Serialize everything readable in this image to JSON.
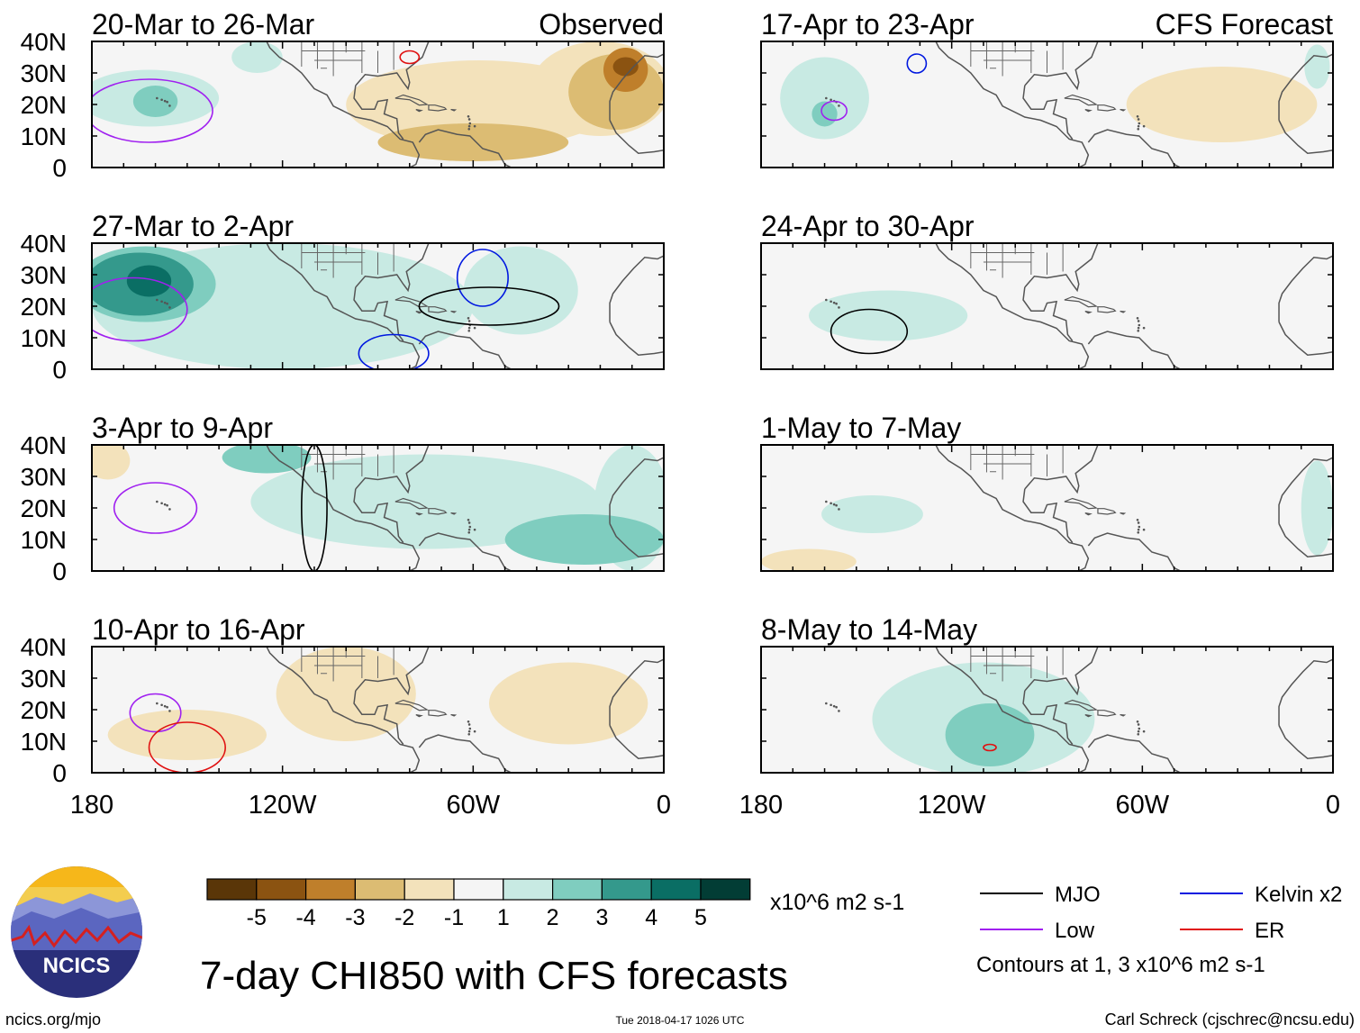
{
  "chart_data": {
    "type": "heatmap",
    "title": "7-day CHI850 with CFS forecasts",
    "units": "x10^6 m2 s-1",
    "region": {
      "lon_range": [
        -180,
        0
      ],
      "lat_range": [
        0,
        40
      ]
    },
    "x_ticks": [
      "180",
      "120W",
      "60W",
      "0"
    ],
    "y_ticks": [
      "40N",
      "30N",
      "20N",
      "10N",
      "0"
    ],
    "left_header": "Observed",
    "right_header": "CFS Forecast",
    "panels": [
      {
        "title": "20-Mar to 26-Mar",
        "source": "Observed",
        "features": [
          {
            "kind": "fill",
            "level": 1,
            "lon": -162,
            "lat": 22,
            "rlon": 22,
            "rlat": 9
          },
          {
            "kind": "fill",
            "level": 2,
            "lon": -160,
            "lat": 21,
            "rlon": 7,
            "rlat": 5
          },
          {
            "kind": "fill",
            "level": 1,
            "lon": -128,
            "lat": 35,
            "rlon": 8,
            "rlat": 5
          },
          {
            "kind": "fill",
            "level": -1,
            "lon": -58,
            "lat": 20,
            "rlon": 42,
            "rlat": 14
          },
          {
            "kind": "fill",
            "level": -1,
            "lon": -20,
            "lat": 25,
            "rlon": 22,
            "rlat": 15
          },
          {
            "kind": "fill",
            "level": -2,
            "lon": -60,
            "lat": 8,
            "rlon": 30,
            "rlat": 6
          },
          {
            "kind": "fill",
            "level": -2,
            "lon": -15,
            "lat": 24,
            "rlon": 15,
            "rlat": 12
          },
          {
            "kind": "fill",
            "level": -3,
            "lon": -12,
            "lat": 31,
            "rlon": 7,
            "rlat": 7
          },
          {
            "kind": "fill",
            "level": -4,
            "lon": -12,
            "lat": 32,
            "rlon": 4,
            "rlat": 3
          },
          {
            "kind": "contour",
            "name": "Low",
            "lon": -162,
            "lat": 18,
            "rlon": 20,
            "rlat": 10
          },
          {
            "kind": "contour",
            "name": "ER",
            "lon": -80,
            "lat": 35,
            "rlon": 3,
            "rlat": 2
          }
        ]
      },
      {
        "title": "17-Apr to 23-Apr",
        "source": "CFS Forecast",
        "features": [
          {
            "kind": "fill",
            "level": 1,
            "lon": -160,
            "lat": 22,
            "rlon": 14,
            "rlat": 13
          },
          {
            "kind": "fill",
            "level": 2,
            "lon": -160,
            "lat": 17,
            "rlon": 4,
            "rlat": 4
          },
          {
            "kind": "fill",
            "level": -1,
            "lon": -35,
            "lat": 20,
            "rlon": 30,
            "rlat": 12
          },
          {
            "kind": "fill",
            "level": 1,
            "lon": -5,
            "lat": 32,
            "rlon": 4,
            "rlat": 7
          },
          {
            "kind": "contour",
            "name": "Kelvin x2",
            "lon": -131,
            "lat": 33,
            "rlon": 3,
            "rlat": 3
          },
          {
            "kind": "contour",
            "name": "Low",
            "lon": -157,
            "lat": 18,
            "rlon": 4,
            "rlat": 3
          }
        ]
      },
      {
        "title": "27-Mar to 2-Apr",
        "source": "Observed",
        "features": [
          {
            "kind": "fill",
            "level": 1,
            "lon": -120,
            "lat": 20,
            "rlon": 60,
            "rlat": 20
          },
          {
            "kind": "fill",
            "level": 1,
            "lon": -45,
            "lat": 25,
            "rlon": 18,
            "rlat": 14
          },
          {
            "kind": "fill",
            "level": 2,
            "lon": -163,
            "lat": 27,
            "rlon": 22,
            "rlat": 12
          },
          {
            "kind": "fill",
            "level": 3,
            "lon": -165,
            "lat": 27,
            "rlon": 17,
            "rlat": 10
          },
          {
            "kind": "fill",
            "level": 4,
            "lon": -162,
            "lat": 28,
            "rlon": 7,
            "rlat": 5
          },
          {
            "kind": "contour",
            "name": "Low",
            "lon": -167,
            "lat": 19,
            "rlon": 17,
            "rlat": 10
          },
          {
            "kind": "contour",
            "name": "Kelvin x2",
            "lon": -57,
            "lat": 29,
            "rlon": 8,
            "rlat": 9
          },
          {
            "kind": "contour",
            "name": "Kelvin x2",
            "lon": -85,
            "lat": 5,
            "rlon": 11,
            "rlat": 6
          },
          {
            "kind": "contour",
            "name": "MJO",
            "lon": -55,
            "lat": 20,
            "rlon": 22,
            "rlat": 6
          }
        ]
      },
      {
        "title": "24-Apr to 30-Apr",
        "source": "CFS Forecast",
        "features": [
          {
            "kind": "fill",
            "level": 1,
            "lon": -140,
            "lat": 17,
            "rlon": 25,
            "rlat": 8
          },
          {
            "kind": "contour",
            "name": "MJO",
            "lon": -146,
            "lat": 12,
            "rlon": 12,
            "rlat": 7
          }
        ]
      },
      {
        "title": "3-Apr to 9-Apr",
        "source": "Observed",
        "features": [
          {
            "kind": "fill",
            "level": 1,
            "lon": -75,
            "lat": 22,
            "rlon": 55,
            "rlat": 15
          },
          {
            "kind": "fill",
            "level": 1,
            "lon": -10,
            "lat": 20,
            "rlon": 12,
            "rlat": 20
          },
          {
            "kind": "fill",
            "level": 2,
            "lon": -25,
            "lat": 10,
            "rlon": 25,
            "rlat": 8
          },
          {
            "kind": "fill",
            "level": 2,
            "lon": -125,
            "lat": 36,
            "rlon": 14,
            "rlat": 5
          },
          {
            "kind": "fill",
            "level": -1,
            "lon": -175,
            "lat": 35,
            "rlon": 7,
            "rlat": 6
          },
          {
            "kind": "contour",
            "name": "Low",
            "lon": -160,
            "lat": 20,
            "rlon": 13,
            "rlat": 8
          },
          {
            "kind": "contour",
            "name": "MJO",
            "lon": -110,
            "lat": 20,
            "rlon": 4,
            "rlat": 20
          }
        ]
      },
      {
        "title": "1-May to 7-May",
        "source": "CFS Forecast",
        "features": [
          {
            "kind": "fill",
            "level": 1,
            "lon": -145,
            "lat": 18,
            "rlon": 16,
            "rlat": 6
          },
          {
            "kind": "fill",
            "level": 1,
            "lon": -5,
            "lat": 20,
            "rlon": 5,
            "rlat": 15
          },
          {
            "kind": "fill",
            "level": -1,
            "lon": -165,
            "lat": 3,
            "rlon": 15,
            "rlat": 4
          }
        ]
      },
      {
        "title": "10-Apr to 16-Apr",
        "source": "Observed",
        "features": [
          {
            "kind": "fill",
            "level": -1,
            "lon": -100,
            "lat": 25,
            "rlon": 22,
            "rlat": 15
          },
          {
            "kind": "fill",
            "level": -1,
            "lon": -30,
            "lat": 22,
            "rlon": 25,
            "rlat": 13
          },
          {
            "kind": "fill",
            "level": -1,
            "lon": -150,
            "lat": 12,
            "rlon": 25,
            "rlat": 8
          },
          {
            "kind": "contour",
            "name": "Low",
            "lon": -160,
            "lat": 19,
            "rlon": 8,
            "rlat": 6
          },
          {
            "kind": "contour",
            "name": "ER",
            "lon": -150,
            "lat": 8,
            "rlon": 12,
            "rlat": 8
          }
        ]
      },
      {
        "title": "8-May to 14-May",
        "source": "CFS Forecast",
        "features": [
          {
            "kind": "fill",
            "level": 1,
            "lon": -110,
            "lat": 17,
            "rlon": 35,
            "rlat": 18
          },
          {
            "kind": "fill",
            "level": 2,
            "lon": -108,
            "lat": 12,
            "rlon": 14,
            "rlat": 10
          },
          {
            "kind": "contour",
            "name": "ER",
            "lon": -108,
            "lat": 8,
            "rlon": 2,
            "rlat": 1
          }
        ]
      }
    ],
    "colorbar": {
      "tick_labels": [
        "-5",
        "-4",
        "-3",
        "-2",
        "-1",
        "1",
        "2",
        "3",
        "4",
        "5"
      ],
      "colors": [
        "#5a3608",
        "#8b5311",
        "#bf7f2b",
        "#dcbc73",
        "#f3e2bb",
        "#f5f5f5",
        "#c8eae3",
        "#7fcdbf",
        "#34998c",
        "#0a6e64",
        "#023d35"
      ]
    },
    "legend": {
      "items": [
        {
          "label": "MJO",
          "color": "#000000"
        },
        {
          "label": "Kelvin x2",
          "color": "#0018e0"
        },
        {
          "label": "Low",
          "color": "#a020f0"
        },
        {
          "label": "ER",
          "color": "#e01010"
        }
      ],
      "note": "Contours at 1, 3 x10^6 m2 s-1"
    }
  },
  "branding": {
    "logo_text": "NCICS",
    "site": "ncics.org/mjo",
    "timestamp": "Tue 2018-04-17 1026 UTC",
    "credit": "Carl Schreck (cjschrec@ncsu.edu)"
  }
}
